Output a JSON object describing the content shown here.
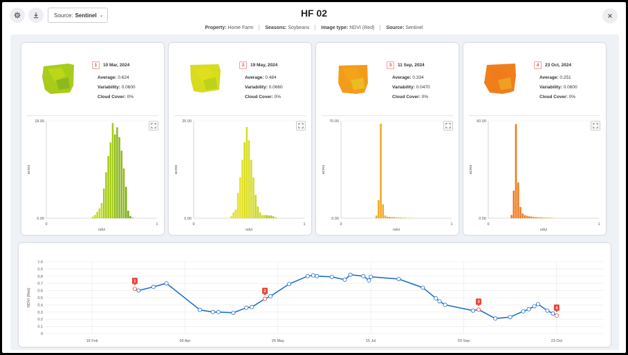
{
  "header": {
    "title": "HF 02",
    "source_label": "Source:",
    "source_value": "Sentinel",
    "meta": [
      {
        "key": "Property:",
        "value": "Home Farm"
      },
      {
        "key": "Seasons:",
        "value": "Soybeans"
      },
      {
        "key": "Image type:",
        "value": "NDVI (Red)"
      },
      {
        "key": "Source:",
        "value": "Sentinel"
      }
    ]
  },
  "icons": {
    "settings": "gear-icon",
    "download": "download-icon",
    "close": "close-icon",
    "expand": "expand-icon"
  },
  "labels": {
    "average": "Average:",
    "variability": "Variability:",
    "cloud": "Cloud Cover:",
    "xlabel": "ndvi",
    "ylabel": "acres",
    "timeline_ylabel": "NDVI (Red)"
  },
  "cards": [
    {
      "badge": "1",
      "date": "10 Mar, 2024",
      "average": "0.624",
      "variability": "0.0600",
      "cloud": "0%",
      "ymax": "18.00",
      "ymin": "0.00",
      "xmin": "0",
      "xmax": "1",
      "colors": [
        "#c2dc18",
        "#a8cc1a",
        "#8dbb1c",
        "#79ad1a"
      ]
    },
    {
      "badge": "2",
      "date": "19 May, 2024",
      "average": "0.484",
      "variability": "0.0660",
      "cloud": "0%",
      "ymax": "25.00",
      "ymin": "0.00",
      "xmin": "0",
      "xmax": "1",
      "colors": [
        "#e6e01e",
        "#d7dc1c",
        "#c8d81c",
        "#aacb1c"
      ]
    },
    {
      "badge": "3",
      "date": "11 Sep, 2024",
      "average": "0.334",
      "variability": "0.0470",
      "cloud": "0%",
      "ymax": "70.00",
      "ymin": "0.00",
      "xmin": "0",
      "xmax": "1",
      "colors": [
        "#f4a81e",
        "#f39c1a",
        "#f2b52a",
        "#e8d02a"
      ]
    },
    {
      "badge": "4",
      "date": "23 Oct, 2024",
      "average": "0.251",
      "variability": "0.0600",
      "cloud": "0%",
      "ymax": "60.00",
      "ymin": "0.00",
      "xmin": "0",
      "xmax": "1",
      "colors": [
        "#ee7a1a",
        "#f07e1c",
        "#f39c1a",
        "#f2b52a"
      ]
    }
  ],
  "chart_data": [
    {
      "type": "bar",
      "title": "",
      "xlabel": "ndvi",
      "ylabel": "acres",
      "xlim": [
        0,
        1
      ],
      "ylim": [
        0,
        18
      ],
      "x": [
        0.42,
        0.44,
        0.46,
        0.48,
        0.5,
        0.52,
        0.54,
        0.56,
        0.58,
        0.6,
        0.62,
        0.64,
        0.66,
        0.68,
        0.7,
        0.72,
        0.74,
        0.76,
        0.78
      ],
      "values": [
        0.3,
        0.6,
        1.2,
        1.8,
        2.8,
        5.5,
        8.5,
        11.5,
        14.0,
        17.6,
        15.5,
        16.8,
        15.0,
        12.5,
        9.2,
        5.8,
        1.4,
        0.4,
        0.1
      ]
    },
    {
      "type": "bar",
      "title": "",
      "xlabel": "ndvi",
      "ylabel": "acres",
      "xlim": [
        0,
        1
      ],
      "ylim": [
        0,
        25
      ],
      "x": [
        0.34,
        0.36,
        0.38,
        0.4,
        0.42,
        0.44,
        0.46,
        0.48,
        0.5,
        0.52,
        0.54,
        0.56,
        0.58,
        0.6,
        0.62,
        0.64,
        0.66,
        0.68,
        0.7,
        0.72,
        0.74
      ],
      "values": [
        0.5,
        1.5,
        2.2,
        6.5,
        10.5,
        15.0,
        19.5,
        23.4,
        20.0,
        15.0,
        10.5,
        6.0,
        3.0,
        1.5,
        0.8,
        0.8,
        0.8,
        0.7,
        0.7,
        0.5,
        0.2
      ]
    },
    {
      "type": "bar",
      "title": "",
      "xlabel": "ndvi",
      "ylabel": "acres",
      "xlim": [
        0,
        1
      ],
      "ylim": [
        0,
        70
      ],
      "x": [
        0.32,
        0.34,
        0.36,
        0.38,
        0.4,
        0.42,
        0.44,
        0.46,
        0.48,
        0.5,
        0.52,
        0.54,
        0.56,
        0.58,
        0.6,
        0.62,
        0.64,
        0.66
      ],
      "values": [
        2,
        13,
        68,
        10,
        2,
        1,
        1,
        0.8,
        0.8,
        0.6,
        0.6,
        0.5,
        0.4,
        0.4,
        0.3,
        0.3,
        0.2,
        0.2
      ]
    },
    {
      "type": "bar",
      "title": "",
      "xlabel": "ndvi",
      "ylabel": "acres",
      "xlim": [
        0,
        1
      ],
      "ylim": [
        0,
        60
      ],
      "x": [
        0.21,
        0.23,
        0.25,
        0.27,
        0.29,
        0.31,
        0.33,
        0.35,
        0.37,
        0.39,
        0.41,
        0.43,
        0.45,
        0.47,
        0.49,
        0.51,
        0.53,
        0.55,
        0.57,
        0.59
      ],
      "values": [
        2,
        17,
        58,
        22,
        7,
        3,
        2,
        1.5,
        1.2,
        1,
        0.9,
        0.8,
        0.6,
        0.6,
        0.5,
        0.5,
        0.4,
        0.4,
        0.3,
        0.2
      ]
    },
    {
      "type": "line",
      "title": "",
      "ylabel": "NDVI (Red)",
      "ylim": [
        0,
        1.0
      ],
      "yticks": [
        "0",
        "0.1",
        "0.2",
        "0.3",
        "0.4",
        "0.5",
        "0.6",
        "0.7",
        "0.8",
        "0.9",
        "1.0"
      ],
      "xticks": [
        "16 Feb",
        "06 Apr",
        "26 May",
        "15 Jul",
        "03 Sep",
        "23 Oct"
      ],
      "x": [
        "2024-03-10",
        "2024-03-12",
        "2024-03-20",
        "2024-03-27",
        "2024-04-14",
        "2024-04-21",
        "2024-04-24",
        "2024-05-02",
        "2024-05-09",
        "2024-05-12",
        "2024-05-19",
        "2024-05-22",
        "2024-06-01",
        "2024-06-11",
        "2024-06-14",
        "2024-06-16",
        "2024-06-24",
        "2024-07-01",
        "2024-07-04",
        "2024-07-11",
        "2024-07-14",
        "2024-07-15",
        "2024-07-30",
        "2024-08-12",
        "2024-08-19",
        "2024-08-21",
        "2024-08-24",
        "2024-09-08",
        "2024-09-11",
        "2024-09-20",
        "2024-09-28",
        "2024-10-05",
        "2024-10-08",
        "2024-10-11",
        "2024-10-13",
        "2024-10-18",
        "2024-10-21",
        "2024-10-23"
      ],
      "values": [
        0.624,
        0.6,
        0.65,
        0.7,
        0.33,
        0.3,
        0.3,
        0.29,
        0.36,
        0.37,
        0.484,
        0.52,
        0.69,
        0.8,
        0.81,
        0.8,
        0.79,
        0.75,
        0.82,
        0.8,
        0.74,
        0.79,
        0.76,
        0.64,
        0.49,
        0.45,
        0.4,
        0.32,
        0.334,
        0.21,
        0.23,
        0.31,
        0.34,
        0.38,
        0.41,
        0.32,
        0.28,
        0.251
      ],
      "markers": [
        {
          "label": "1",
          "index": 0
        },
        {
          "label": "2",
          "index": 10
        },
        {
          "label": "3",
          "index": 28
        },
        {
          "label": "4",
          "index": 37
        }
      ]
    }
  ]
}
